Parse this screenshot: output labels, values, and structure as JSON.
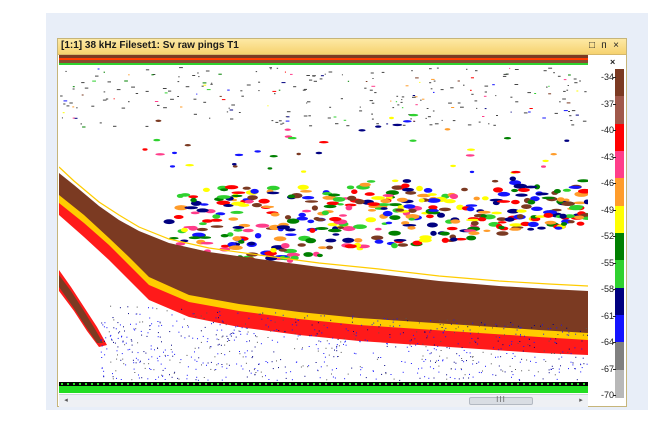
{
  "window": {
    "title": "[1:1] 38 kHz Fileset1: Sv raw pings T1",
    "buttons": {
      "restore": "□",
      "pin": "ᴨ",
      "close": "×"
    }
  },
  "colorbar": {
    "close_label": "×",
    "ticks": [
      "-34",
      "-37",
      "-40",
      "-43",
      "-46",
      "-49",
      "-52",
      "-55",
      "-58",
      "-61",
      "-64",
      "-67",
      "-70"
    ],
    "colors": [
      "#7b3a22",
      "#a0584a",
      "#ff0000",
      "#ff3d8a",
      "#ff9c2a",
      "#ffff00",
      "#008000",
      "#2fd12f",
      "#000080",
      "#1414ff",
      "#808080",
      "#b8b8b8"
    ]
  },
  "scrollbar": {
    "left_arrow": "◂",
    "right_arrow": "▸",
    "grip": "III"
  },
  "icons": {
    "close": "close-icon",
    "restore": "restore-icon",
    "pin": "pin-icon"
  }
}
